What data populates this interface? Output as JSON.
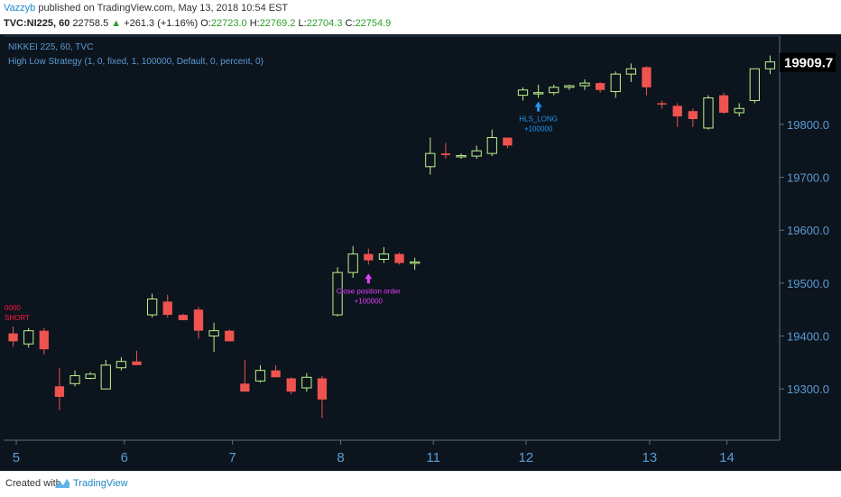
{
  "header": {
    "user": "Vazzyb",
    "published": "published on TradingView.com, May 13, 2018 10:54 EST",
    "symbol": "TVC:NI225, 60",
    "price": "22758.5",
    "change": "+261.3 (+1.16%)",
    "o_label": "O:",
    "o_val": "22723.0",
    "h_label": "H:",
    "h_val": "22769.2",
    "l_label": "L:",
    "l_val": "22704.3",
    "c_label": "C:",
    "c_val": "22754.9"
  },
  "legend": {
    "line1": "NIKKEI 225, 60, TVC",
    "line2": "High Low Strategy (1, 0, fixed, 1, 100000, Default, 0, percent, 0)"
  },
  "colors": {
    "background": "#0c141d",
    "bull": "#bef38c",
    "bull_hollow": "#bef38c",
    "bear": "#ef5350",
    "axis_text": "#5b9bd5",
    "last_price_bg": "#000000",
    "long_marker": "#2196f3",
    "close_marker": "#e040fb",
    "short_marker": "#ff1744"
  },
  "chart_data": {
    "type": "candlestick",
    "x_tick_labels": [
      "5",
      "6",
      "7",
      "8",
      "11",
      "12",
      "13",
      "14"
    ],
    "y_ticks": [
      19300.0,
      19400.0,
      19500.0,
      19600.0,
      19700.0,
      19800.0
    ],
    "y_tick_labels": [
      "19300.0",
      "19400.0",
      "19500.0",
      "19600.0",
      "19700.0",
      "19800.0"
    ],
    "ylim": [
      19210,
      19960
    ],
    "last_price": "19909.7",
    "candles": [
      {
        "x": 0,
        "o": 19405,
        "h": 19418,
        "l": 19380,
        "c": 19390
      },
      {
        "x": 1,
        "o": 19385,
        "h": 19415,
        "l": 19378,
        "c": 19410
      },
      {
        "x": 2,
        "o": 19410,
        "h": 19415,
        "l": 19365,
        "c": 19375
      },
      {
        "x": 3,
        "o": 19305,
        "h": 19340,
        "l": 19260,
        "c": 19285
      },
      {
        "x": 4,
        "o": 19310,
        "h": 19335,
        "l": 19305,
        "c": 19325
      },
      {
        "x": 5,
        "o": 19320,
        "h": 19332,
        "l": 19318,
        "c": 19328
      },
      {
        "x": 6,
        "o": 19300,
        "h": 19355,
        "l": 19300,
        "c": 19345
      },
      {
        "x": 7,
        "o": 19340,
        "h": 19360,
        "l": 19335,
        "c": 19352
      },
      {
        "x": 8,
        "o": 19352,
        "h": 19372,
        "l": 19345,
        "c": 19345
      },
      {
        "x": 9,
        "o": 19440,
        "h": 19480,
        "l": 19435,
        "c": 19470
      },
      {
        "x": 10,
        "o": 19465,
        "h": 19478,
        "l": 19435,
        "c": 19440
      },
      {
        "x": 11,
        "o": 19440,
        "h": 19442,
        "l": 19430,
        "c": 19430
      },
      {
        "x": 12,
        "o": 19450,
        "h": 19455,
        "l": 19395,
        "c": 19410
      },
      {
        "x": 13,
        "o": 19400,
        "h": 19425,
        "l": 19370,
        "c": 19410
      },
      {
        "x": 14,
        "o": 19410,
        "h": 19412,
        "l": 19390,
        "c": 19390
      },
      {
        "x": 15,
        "o": 19310,
        "h": 19355,
        "l": 19300,
        "c": 19295
      },
      {
        "x": 16,
        "o": 19315,
        "h": 19345,
        "l": 19312,
        "c": 19335
      },
      {
        "x": 17,
        "o": 19335,
        "h": 19345,
        "l": 19322,
        "c": 19322
      },
      {
        "x": 18,
        "o": 19320,
        "h": 19322,
        "l": 19290,
        "c": 19295
      },
      {
        "x": 19,
        "o": 19302,
        "h": 19330,
        "l": 19295,
        "c": 19322
      },
      {
        "x": 20,
        "o": 19320,
        "h": 19325,
        "l": 19245,
        "c": 19280
      },
      {
        "x": 21,
        "o": 19440,
        "h": 19530,
        "l": 19437,
        "c": 19520
      },
      {
        "x": 22,
        "o": 19520,
        "h": 19570,
        "l": 19510,
        "c": 19555
      },
      {
        "x": 23,
        "o": 19555,
        "h": 19565,
        "l": 19535,
        "c": 19543
      },
      {
        "x": 24,
        "o": 19545,
        "h": 19568,
        "l": 19538,
        "c": 19555
      },
      {
        "x": 25,
        "o": 19555,
        "h": 19558,
        "l": 19535,
        "c": 19538
      },
      {
        "x": 26,
        "o": 19538,
        "h": 19548,
        "l": 19525,
        "c": 19540
      },
      {
        "x": 27,
        "o": 19720,
        "h": 19775,
        "l": 19705,
        "c": 19745
      },
      {
        "x": 28,
        "o": 19745,
        "h": 19765,
        "l": 19735,
        "c": 19742
      },
      {
        "x": 29,
        "o": 19740,
        "h": 19745,
        "l": 19735,
        "c": 19741
      },
      {
        "x": 30,
        "o": 19740,
        "h": 19760,
        "l": 19735,
        "c": 19750
      },
      {
        "x": 31,
        "o": 19745,
        "h": 19790,
        "l": 19740,
        "c": 19775
      },
      {
        "x": 32,
        "o": 19775,
        "h": 19775,
        "l": 19755,
        "c": 19760
      },
      {
        "x": 33,
        "o": 19855,
        "h": 19870,
        "l": 19845,
        "c": 19865
      },
      {
        "x": 34,
        "o": 19860,
        "h": 19875,
        "l": 19850,
        "c": 19860
      },
      {
        "x": 35,
        "o": 19860,
        "h": 19875,
        "l": 19855,
        "c": 19870
      },
      {
        "x": 36,
        "o": 19870,
        "h": 19875,
        "l": 19865,
        "c": 19873
      },
      {
        "x": 37,
        "o": 19873,
        "h": 19885,
        "l": 19865,
        "c": 19878
      },
      {
        "x": 38,
        "o": 19878,
        "h": 19880,
        "l": 19860,
        "c": 19865
      },
      {
        "x": 39,
        "o": 19862,
        "h": 19900,
        "l": 19850,
        "c": 19895
      },
      {
        "x": 40,
        "o": 19895,
        "h": 19915,
        "l": 19880,
        "c": 19905
      },
      {
        "x": 41,
        "o": 19908,
        "h": 19910,
        "l": 19855,
        "c": 19870
      },
      {
        "x": 42,
        "o": 19840,
        "h": 19845,
        "l": 19830,
        "c": 19838
      },
      {
        "x": 43,
        "o": 19835,
        "h": 19840,
        "l": 19795,
        "c": 19815
      },
      {
        "x": 44,
        "o": 19825,
        "h": 19830,
        "l": 19795,
        "c": 19810
      },
      {
        "x": 45,
        "o": 19793,
        "h": 19855,
        "l": 19790,
        "c": 19850
      },
      {
        "x": 46,
        "o": 19855,
        "h": 19860,
        "l": 19820,
        "c": 19822
      },
      {
        "x": 47,
        "o": 19822,
        "h": 19840,
        "l": 19815,
        "c": 19830
      },
      {
        "x": 48,
        "o": 19845,
        "h": 19905,
        "l": 19840,
        "c": 19905
      },
      {
        "x": 49,
        "o": 19905,
        "h": 19930,
        "l": 19895,
        "c": 19918
      }
    ],
    "annotations": [
      {
        "label": "Close position order",
        "sub": "+100000",
        "x": 23,
        "price": 19518,
        "kind": "close"
      },
      {
        "label": "HLS_LONG",
        "sub": "+100000",
        "x": 34,
        "price": 19843,
        "kind": "long"
      }
    ],
    "short_label_top": "0000",
    "short_label": "SHORT"
  },
  "footer": {
    "created": "Created with",
    "brand": "TradingView"
  }
}
